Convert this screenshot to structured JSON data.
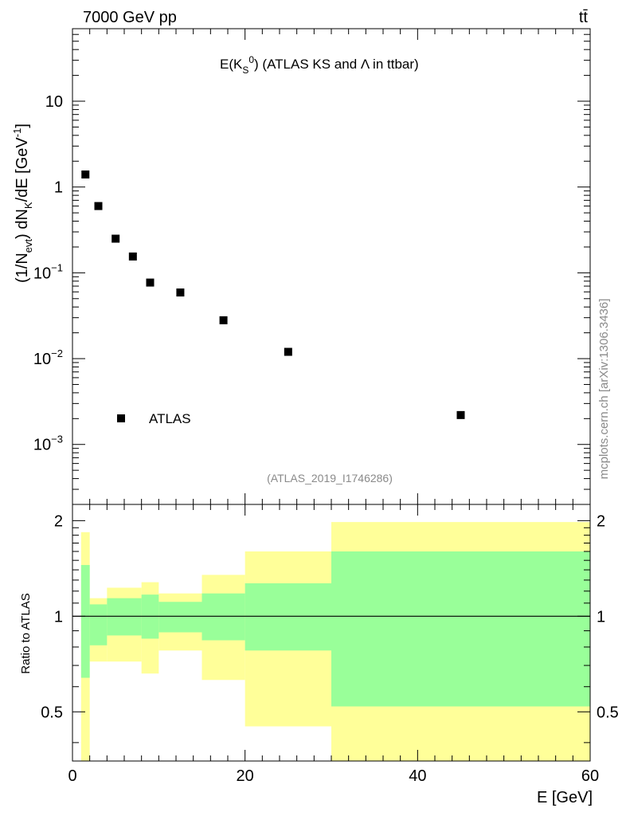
{
  "header": {
    "left_label": "7000 GeV pp",
    "right_label": "tt̄"
  },
  "watermark": {
    "side_text": "mcplots.cern.ch [arXiv:1306.3436]",
    "analysis_id": "(ATLAS_2019_I1746286)"
  },
  "colors": {
    "band_outer": "#ffff99",
    "band_inner": "#99ff99",
    "marker": "#000000"
  },
  "chart_data": [
    {
      "type": "scatter",
      "title": {
        "prefix": "E(K",
        "sub": "S",
        "sup": "0",
        "suffix": ") (ATLAS KS and Λ in ttbar)"
      },
      "ylabel": {
        "p1": "(1/N",
        "s1": "evt",
        "p2": ") dN",
        "s2": "K",
        "p3": "/dE [GeV",
        "s3": "-1",
        "p4": "]"
      },
      "yscale": "log",
      "ylim": [
        0.0002,
        70
      ],
      "xlim": [
        0,
        60
      ],
      "ytick_labels": [
        {
          "value": 10,
          "base": "10",
          "exp": ""
        },
        {
          "value": 1,
          "base": "1",
          "exp": ""
        },
        {
          "value": 0.1,
          "base": "10",
          "exp": "−1"
        },
        {
          "value": 0.01,
          "base": "10",
          "exp": "−2"
        },
        {
          "value": 0.001,
          "base": "10",
          "exp": "−3"
        }
      ],
      "legend": {
        "label": "ATLAS",
        "position": "bottom-left"
      },
      "series": [
        {
          "name": "ATLAS",
          "x": [
            1.5,
            3,
            5,
            7,
            9,
            12.5,
            17.5,
            25,
            45
          ],
          "y": [
            1.4,
            0.6,
            0.25,
            0.155,
            0.077,
            0.059,
            0.028,
            0.012,
            0.0022
          ]
        }
      ]
    },
    {
      "type": "area",
      "ylabel": "Ratio to ATLAS",
      "xlabel": "E [GeV]",
      "xlim": [
        0,
        60
      ],
      "ylim": [
        0.35,
        2.25
      ],
      "xtick_labels": [
        "0",
        "20",
        "40",
        "60"
      ],
      "ytick_labels": [
        "0.5",
        "1",
        "2"
      ],
      "reference_line": 1,
      "bins": [
        {
          "lo": 1,
          "hi": 2,
          "inner": [
            0.64,
            1.45
          ],
          "outer": [
            0.35,
            1.84
          ]
        },
        {
          "lo": 2,
          "hi": 4,
          "inner": [
            0.81,
            1.09
          ],
          "outer": [
            0.72,
            1.14
          ]
        },
        {
          "lo": 4,
          "hi": 8,
          "inner": [
            0.87,
            1.14
          ],
          "outer": [
            0.72,
            1.23
          ]
        },
        {
          "lo": 8,
          "hi": 10,
          "inner": [
            0.85,
            1.17
          ],
          "outer": [
            0.66,
            1.28
          ]
        },
        {
          "lo": 10,
          "hi": 15,
          "inner": [
            0.89,
            1.11
          ],
          "outer": [
            0.78,
            1.18
          ]
        },
        {
          "lo": 15,
          "hi": 20,
          "inner": [
            0.84,
            1.18
          ],
          "outer": [
            0.63,
            1.35
          ]
        },
        {
          "lo": 20,
          "hi": 30,
          "inner": [
            0.78,
            1.27
          ],
          "outer": [
            0.45,
            1.6
          ]
        },
        {
          "lo": 30,
          "hi": 60,
          "inner": [
            0.52,
            1.6
          ],
          "outer": [
            0.35,
            1.98
          ]
        }
      ]
    }
  ]
}
